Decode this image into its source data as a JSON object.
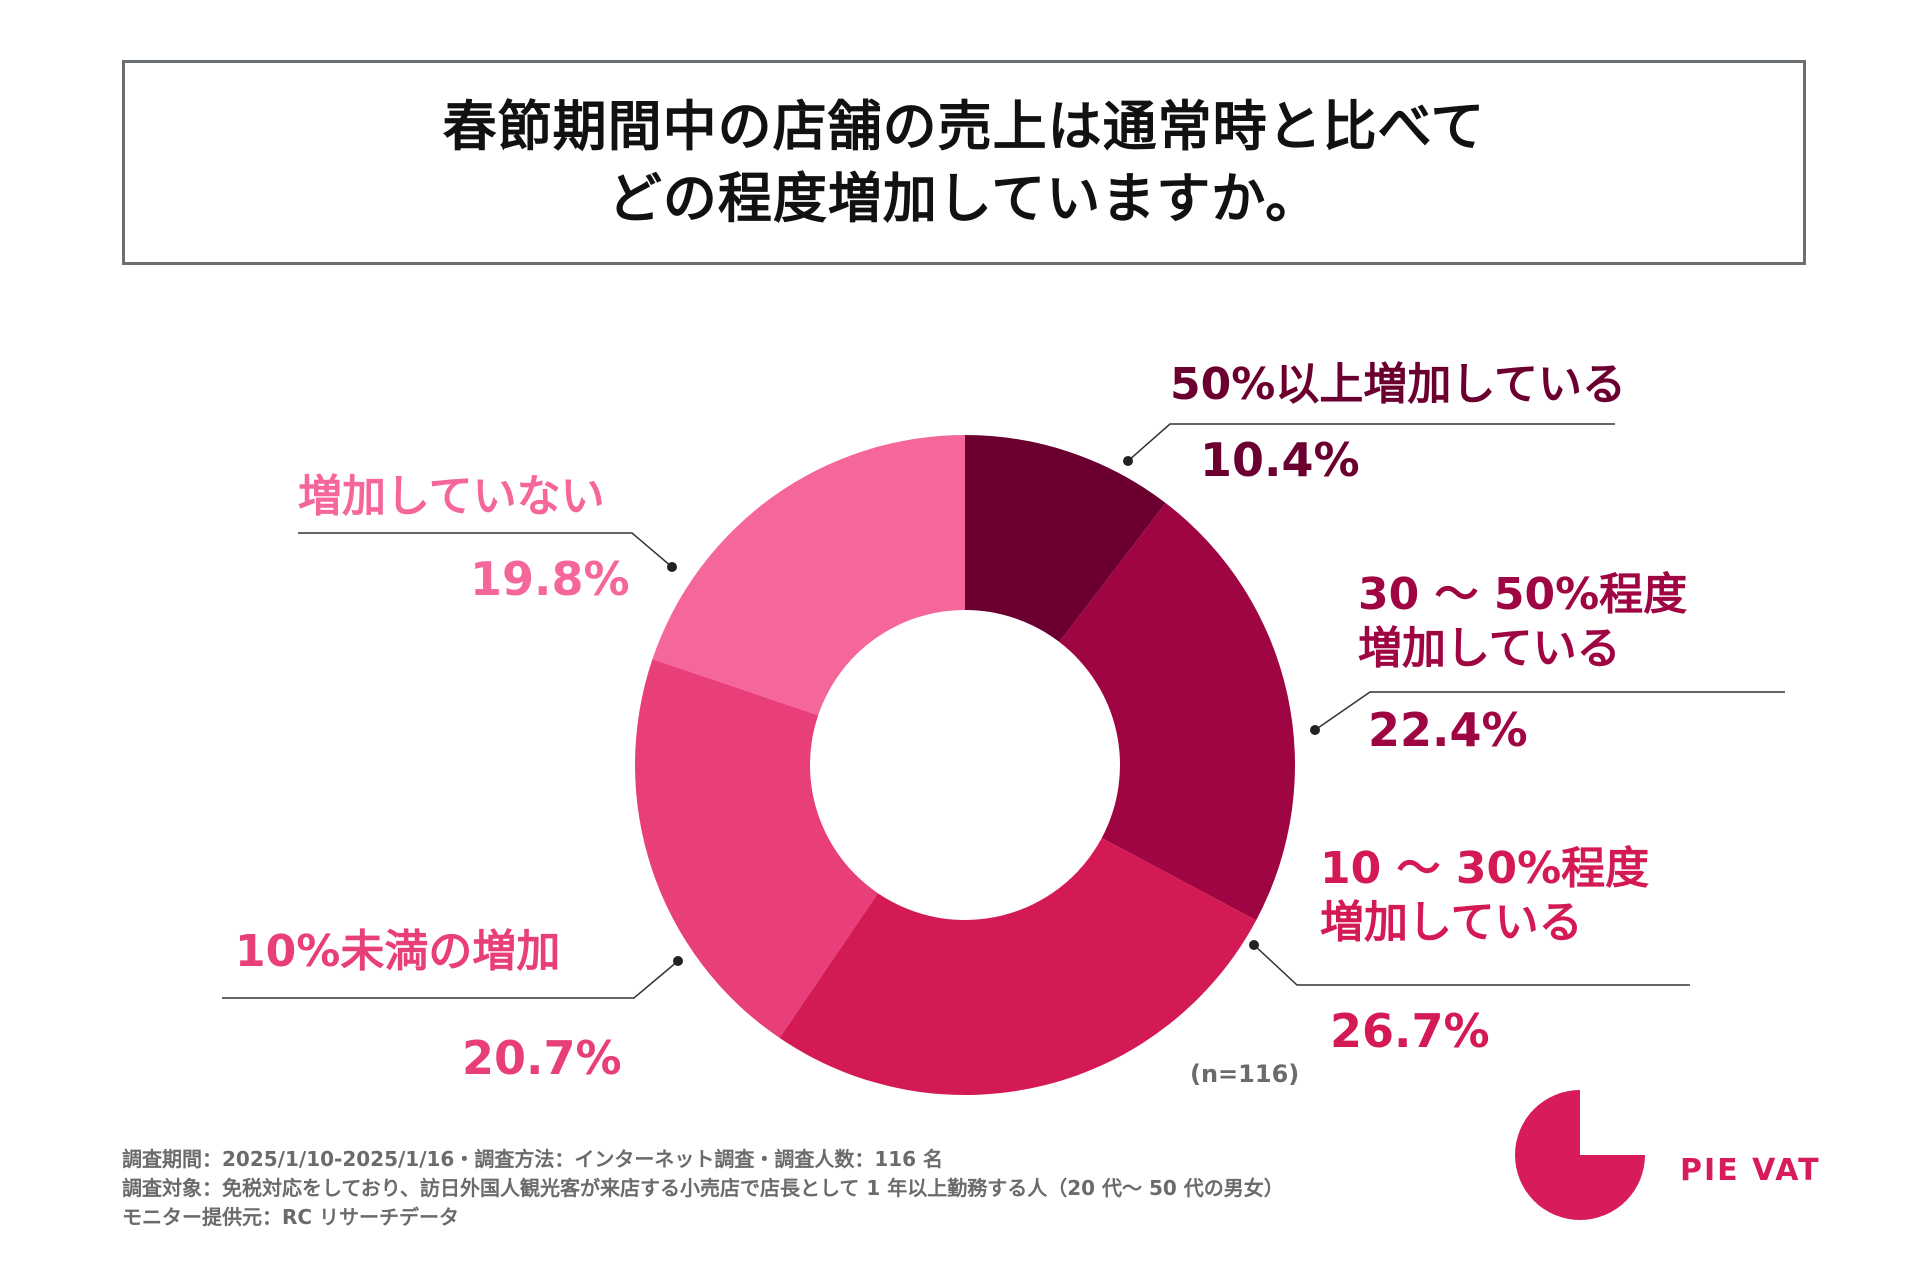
{
  "title": {
    "line1": "春節期間中の店舗の売上は通常時と比べて",
    "line2": "どの程度増加していますか。"
  },
  "chart_data": {
    "type": "pie",
    "subtype": "donut",
    "slices": [
      {
        "label": "50%以上増加している",
        "label_lines": [
          "50%以上増加している"
        ],
        "value": 10.4,
        "value_label": "10.4%",
        "color": "#6b0030"
      },
      {
        "label": "30 〜 50%程度増加している",
        "label_lines": [
          "30 〜 50%程度",
          "増加している"
        ],
        "value": 22.4,
        "value_label": "22.4%",
        "color": "#9e0542"
      },
      {
        "label": "10 〜 30%程度増加している",
        "label_lines": [
          "10 〜 30%程度",
          "増加している"
        ],
        "value": 26.7,
        "value_label": "26.7%",
        "color": "#d41a55"
      },
      {
        "label": "10%未満の増加",
        "label_lines": [
          "10%未満の増加"
        ],
        "value": 20.7,
        "value_label": "20.7%",
        "color": "#e83e7a"
      },
      {
        "label": "増加していない",
        "label_lines": [
          "増加していない"
        ],
        "value": 19.8,
        "value_label": "19.8%",
        "color": "#f5679b"
      }
    ],
    "sample_note": "(n=116)"
  },
  "footer": {
    "line1": "調査期間：2025/1/10-2025/1/16・調査方法：インターネット調査・調査人数：116 名",
    "line2": "調査対象：免税対応をしており、訪日外国人観光客が来店する小売店で店長として 1 年以上勤務する人（20 代〜 50 代の男女）",
    "line3": "モニター提供元：RC リサーチデータ"
  },
  "logo": {
    "text": "PIE VAT",
    "color": "#d81b5a"
  }
}
